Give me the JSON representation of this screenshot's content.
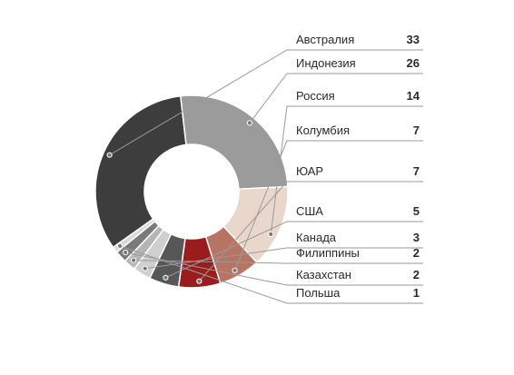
{
  "chart_data": {
    "type": "pie",
    "variant": "donut",
    "legend_position": "right",
    "categories": [
      "Австралия",
      "Индонезия",
      "Россия",
      "Колумбия",
      "ЮАР",
      "США",
      "Канада",
      "Филиппины",
      "Казахстан",
      "Польша"
    ],
    "values": [
      33,
      26,
      14,
      7,
      7,
      5,
      3,
      2,
      2,
      1
    ],
    "value_labels": [
      "33",
      "26",
      "14",
      "7",
      "7",
      "5",
      "3",
      "2",
      "2",
      "1"
    ],
    "colors": [
      "#3d3d3d",
      "#9b9b9b",
      "#e9d7cc",
      "#b87462",
      "#9a1d1d",
      "#575757",
      "#cfcfcf",
      "#b5b5b5",
      "#7a7a7a",
      "#d9d9d9"
    ],
    "leader_line_color": "#9a9a9a",
    "separator_color": "#ffffff"
  }
}
